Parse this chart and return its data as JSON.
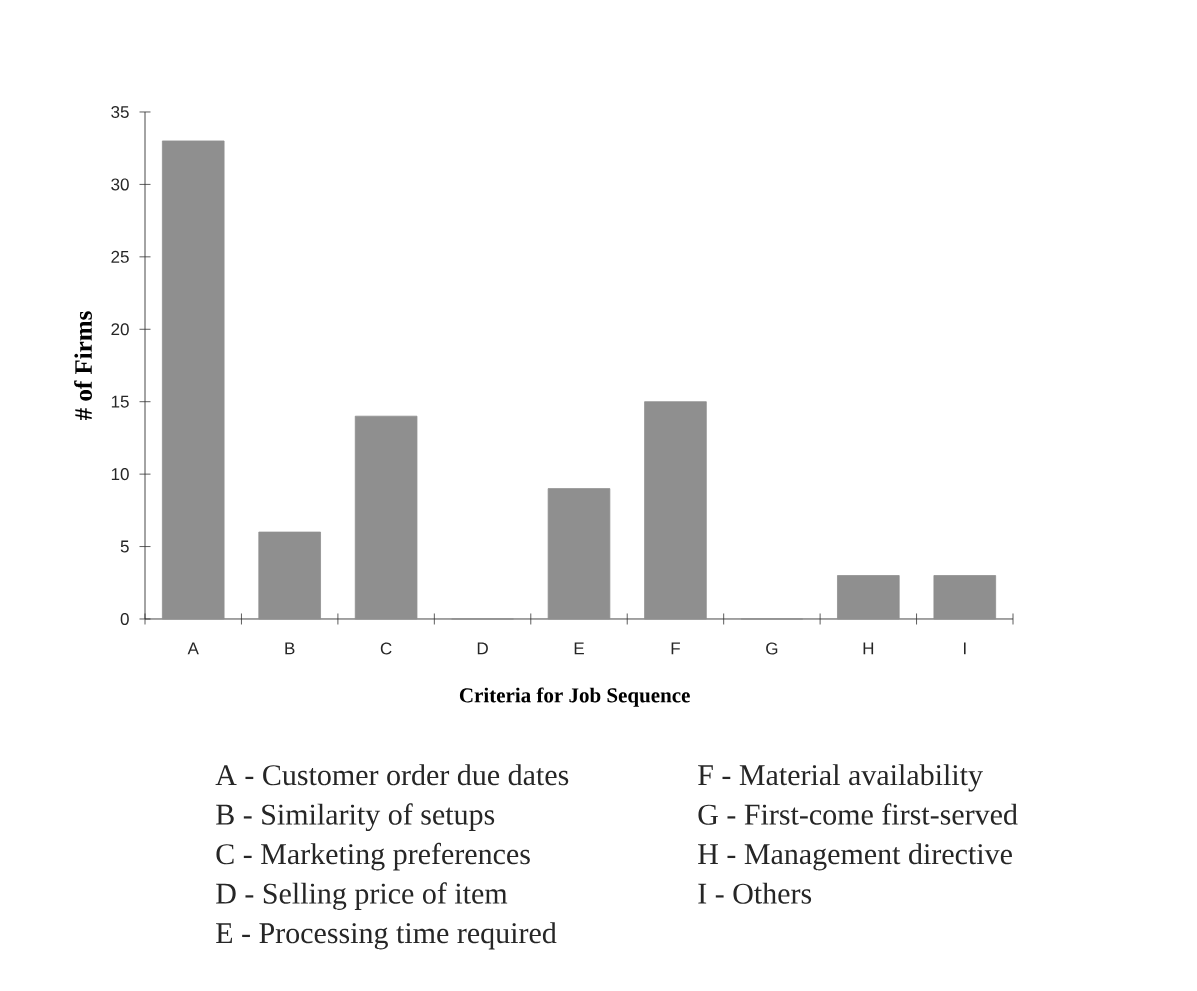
{
  "chart_data": {
    "type": "bar",
    "xlabel": "Criteria for Job Sequence",
    "ylabel": "# of Firms",
    "categories": [
      "A",
      "B",
      "C",
      "D",
      "E",
      "F",
      "G",
      "H",
      "I"
    ],
    "values": [
      33,
      6,
      14,
      0,
      9,
      15,
      0,
      3,
      3
    ],
    "color": "#8f8f8f",
    "ylim": [
      0,
      35
    ],
    "yticks": [
      0,
      5,
      10,
      15,
      20,
      25,
      30,
      35
    ],
    "annotations": [
      "A - Customer order due dates",
      "B - Similarity of setups",
      "C - Marketing preferences",
      "D - Selling price of item",
      "E - Processing time required",
      "F - Material availability",
      "G - First-come first-served",
      "H - Management directive",
      "I - Others"
    ]
  }
}
